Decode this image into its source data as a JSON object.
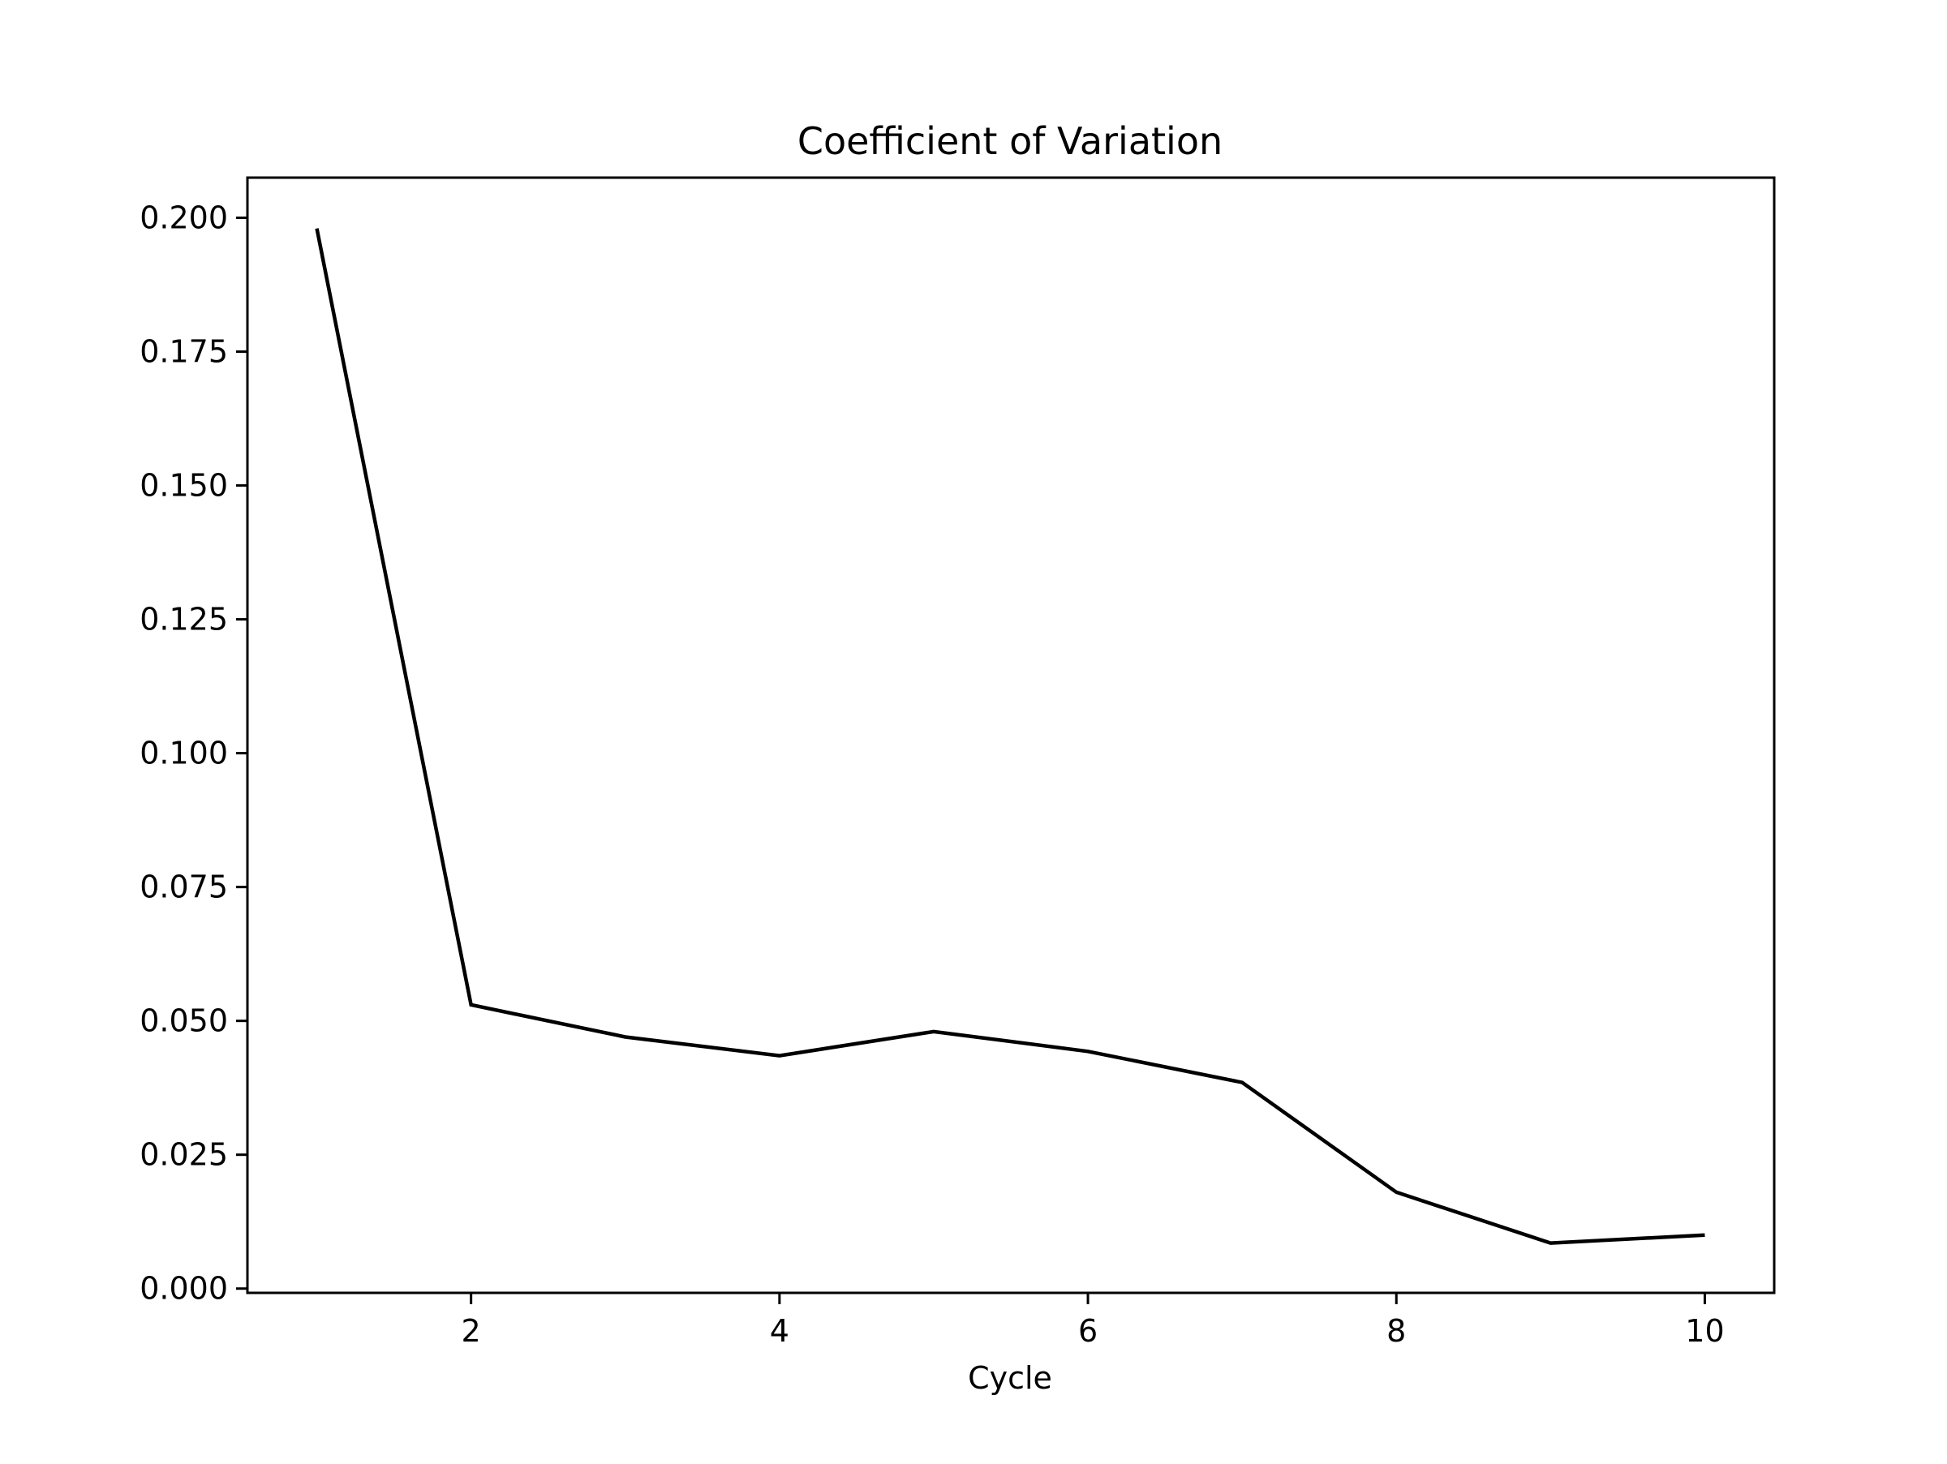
{
  "chart_data": {
    "type": "line",
    "title": "Coefficient of Variation",
    "xlabel": "Cycle",
    "ylabel": "",
    "x": [
      1,
      2,
      3,
      4,
      5,
      6,
      7,
      8,
      9,
      10
    ],
    "series": [
      {
        "values": [
          0.198,
          0.053,
          0.047,
          0.0435,
          0.048,
          0.0443,
          0.0385,
          0.018,
          0.0085,
          0.01
        ],
        "color": "#000000"
      }
    ],
    "xlim": [
      0.55,
      10.45
    ],
    "ylim": [
      -0.0008,
      0.2075
    ],
    "xticks": [
      2,
      4,
      6,
      8,
      10
    ],
    "xtick_labels": [
      "2",
      "4",
      "6",
      "8",
      "10"
    ],
    "yticks": [
      0.0,
      0.025,
      0.05,
      0.075,
      0.1,
      0.125,
      0.15,
      0.175,
      0.2
    ],
    "ytick_labels": [
      "0.000",
      "0.025",
      "0.050",
      "0.075",
      "0.100",
      "0.125",
      "0.150",
      "0.175",
      "0.200"
    ],
    "grid": false,
    "legend": "none"
  }
}
